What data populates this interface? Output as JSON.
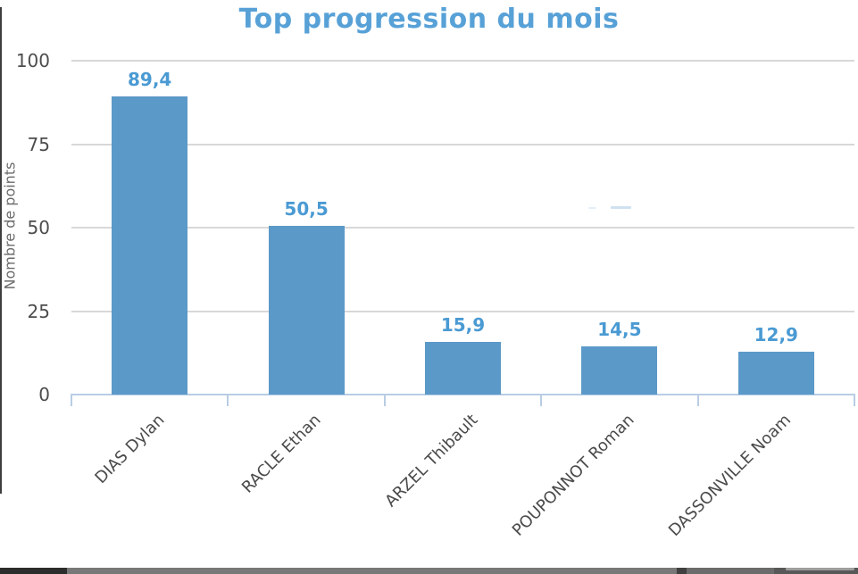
{
  "chart_data": {
    "type": "bar",
    "title": "Top progression du mois",
    "ylabel": "Nombre de points",
    "xlabel": "",
    "categories": [
      "DIAS Dylan",
      "RACLE Ethan",
      "ARZEL Thibault",
      "POUPONNOT Roman",
      "DASSONVILLE Noam"
    ],
    "values": [
      89.4,
      50.5,
      15.9,
      14.5,
      12.9
    ],
    "value_labels": [
      "89,4",
      "50,5",
      "15,9",
      "14,5",
      "12,9"
    ],
    "ylim": [
      0,
      100
    ],
    "yticks": [
      0,
      25,
      50,
      75,
      100
    ],
    "ytick_labels": [
      "0",
      "25",
      "50",
      "75",
      "100"
    ],
    "grid": true,
    "legend_position": "none",
    "colors": {
      "bar": "#5b99c8",
      "value_label": "#4a9ad3",
      "title": "#57a1d7",
      "axis_line": "#b9cde4",
      "gridline": "#d8d8d8",
      "ytick_text": "#4d4d4d",
      "category_text": "#4a4a4a",
      "ylabel_text": "#6b6b6b"
    }
  }
}
